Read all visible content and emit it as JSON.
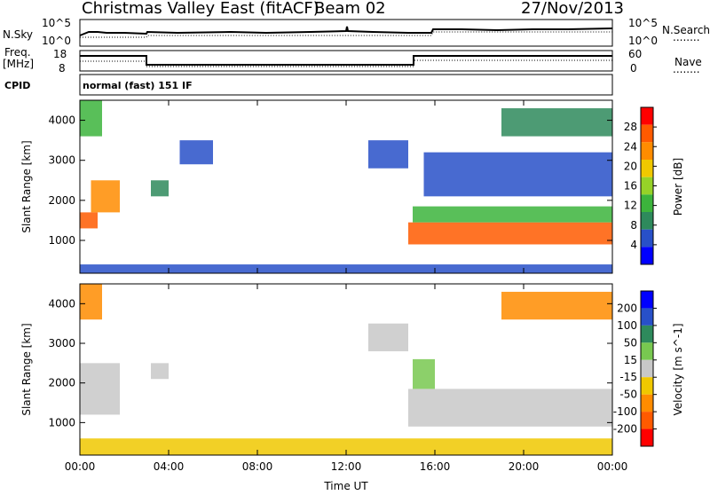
{
  "header": {
    "site": "Christmas Valley East (fitACF)",
    "beam": "Beam 02",
    "date": "27/Nov/2013"
  },
  "side_labels": {
    "nsky": "N.Sky",
    "nsearch": "N.Search",
    "freq": "Freq.",
    "freq_unit": "[MHz]",
    "nave": "Nave",
    "cpid": "CPID",
    "cpid_value": "normal (fast) 151 IF",
    "dots": "........",
    "nsky_hi": "10^5",
    "nsky_lo": "10^0",
    "ns_hi": "10^5",
    "ns_lo": "10^0",
    "freq_hi": "18",
    "freq_lo": "8",
    "nave_hi": "60",
    "nave_lo": "0"
  },
  "chart_data": [
    {
      "type": "heatmap",
      "title": "Power",
      "xlabel": "Time UT",
      "ylabel": "Slant Range [km]",
      "colorbar_label": "Power [dB]",
      "x_ticks": [
        "00:00",
        "04:00",
        "08:00",
        "12:00",
        "16:00",
        "20:00",
        "00:00"
      ],
      "y_ticks": [
        1000,
        2000,
        3000,
        4000
      ],
      "ylim": [
        180,
        4500
      ],
      "colorbar_ticks": [
        4,
        8,
        12,
        16,
        20,
        24,
        28
      ],
      "colorbar_range": [
        0,
        32
      ],
      "colors": [
        "#0000ff",
        "#2850c8",
        "#2e8a5c",
        "#3cb43c",
        "#96d228",
        "#f0c800",
        "#ff8c00",
        "#ff5a00",
        "#ff0000"
      ],
      "regions": [
        {
          "t0": 0.0,
          "t1": 0.8,
          "r0": 1300,
          "r1": 1700,
          "value": 26
        },
        {
          "t0": 0.0,
          "t1": 1.0,
          "r0": 3600,
          "r1": 4500,
          "value": 14
        },
        {
          "t0": 0.5,
          "t1": 1.8,
          "r0": 1700,
          "r1": 2500,
          "value": 22
        },
        {
          "t0": 3.2,
          "t1": 4.0,
          "r0": 2100,
          "r1": 2500,
          "value": 8
        },
        {
          "t0": 4.5,
          "t1": 6.0,
          "r0": 2900,
          "r1": 3500,
          "value": 5
        },
        {
          "t0": 13.0,
          "t1": 14.8,
          "r0": 2800,
          "r1": 3500,
          "value": 6
        },
        {
          "t0": 14.8,
          "t1": 24.0,
          "r0": 900,
          "r1": 1450,
          "value": 28
        },
        {
          "t0": 15.0,
          "t1": 24.0,
          "r0": 1450,
          "r1": 1850,
          "value": 14
        },
        {
          "t0": 15.5,
          "t1": 24.0,
          "r0": 2100,
          "r1": 3200,
          "value": 5
        },
        {
          "t0": 19.0,
          "t1": 24.0,
          "r0": 3600,
          "r1": 4300,
          "value": 10
        },
        {
          "t0": 0.0,
          "t1": 24.0,
          "r0": 180,
          "r1": 400,
          "value": 6
        }
      ]
    },
    {
      "type": "heatmap",
      "title": "Velocity",
      "xlabel": "Time UT",
      "ylabel": "Slant Range [km]",
      "colorbar_label": "Velocity [m s^-1]",
      "x_ticks": [
        "00:00",
        "04:00",
        "08:00",
        "12:00",
        "16:00",
        "20:00",
        "00:00"
      ],
      "y_ticks": [
        1000,
        2000,
        3000,
        4000
      ],
      "ylim": [
        180,
        4500
      ],
      "colorbar_ticks": [
        "200",
        "100",
        "50",
        "15",
        "-15",
        "-50",
        "-100",
        "-200"
      ],
      "colorbar_range": [
        -250,
        250
      ],
      "colors": [
        "#0000ff",
        "#2850c8",
        "#2e8a5c",
        "#78c850",
        "#c8c8c8",
        "#f0c800",
        "#ff8c00",
        "#ff5a00",
        "#ff0000"
      ],
      "regions": [
        {
          "t0": 0.0,
          "t1": 1.8,
          "r0": 1200,
          "r1": 2500,
          "value": 0
        },
        {
          "t0": 0.0,
          "t1": 1.0,
          "r0": 3600,
          "r1": 4500,
          "value": -120
        },
        {
          "t0": 3.2,
          "t1": 4.0,
          "r0": 2100,
          "r1": 2500,
          "value": 0
        },
        {
          "t0": 13.0,
          "t1": 14.8,
          "r0": 2800,
          "r1": 3500,
          "value": 0
        },
        {
          "t0": 14.8,
          "t1": 24.0,
          "r0": 900,
          "r1": 1850,
          "value": 0
        },
        {
          "t0": 15.0,
          "t1": 16.0,
          "r0": 1850,
          "r1": 2600,
          "value": 40
        },
        {
          "t0": 19.0,
          "t1": 24.0,
          "r0": 3600,
          "r1": 4300,
          "value": -100
        },
        {
          "t0": 0.0,
          "t1": 24.0,
          "r0": 180,
          "r1": 600,
          "value": -60
        }
      ]
    }
  ]
}
